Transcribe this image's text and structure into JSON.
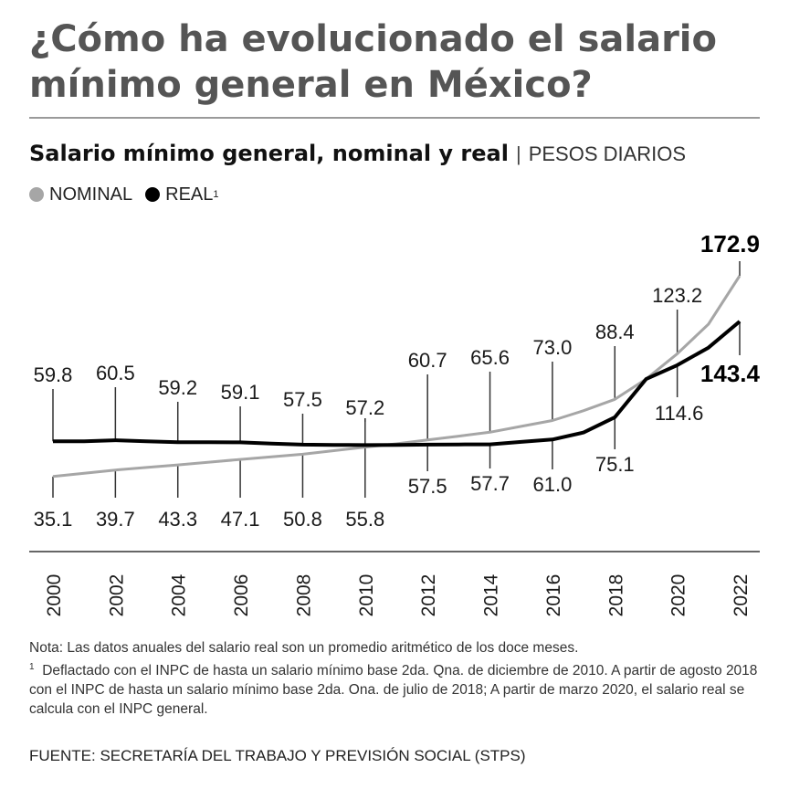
{
  "header": {
    "title": "¿Cómo ha evolucionado el salario mínimo general en México?",
    "subtitle_strong": "Salario mínimo general, nominal y real",
    "subtitle_sep": "|",
    "subtitle_unit": "PESOS DIARIOS"
  },
  "legend": {
    "nominal_label": "NOMINAL",
    "real_label": "REAL",
    "real_footnote_mark": "1"
  },
  "colors": {
    "nominal": "#a6a6a6",
    "real": "#000000",
    "axis": "#333333",
    "title": "#555555"
  },
  "chart_data": {
    "type": "line",
    "title": "Salario mínimo general, nominal y real",
    "ylabel": "Pesos diarios",
    "xlabel": "",
    "x": [
      2000,
      2001,
      2002,
      2003,
      2004,
      2005,
      2006,
      2007,
      2008,
      2009,
      2010,
      2011,
      2012,
      2013,
      2014,
      2015,
      2016,
      2017,
      2018,
      2019,
      2020,
      2021,
      2022
    ],
    "tick_labels": [
      "2000",
      "2002",
      "2004",
      "2006",
      "2008",
      "2010",
      "2012",
      "2014",
      "2016",
      "2018",
      "2020",
      "2022"
    ],
    "series": [
      {
        "name": "NOMINAL",
        "values": [
          35.1,
          37.4,
          39.7,
          41.5,
          43.3,
          45.2,
          47.1,
          49.0,
          50.8,
          53.3,
          55.8,
          58.1,
          60.7,
          63.1,
          65.6,
          69.3,
          73.0,
          80.0,
          88.4,
          102.7,
          123.2,
          141.7,
          172.9
        ]
      },
      {
        "name": "REAL",
        "values": [
          59.8,
          59.8,
          60.5,
          59.8,
          59.2,
          59.2,
          59.1,
          58.3,
          57.5,
          57.3,
          57.2,
          57.3,
          57.5,
          57.6,
          57.7,
          59.4,
          61.0,
          65.4,
          75.1,
          102.7,
          114.6,
          127.0,
          143.4
        ]
      }
    ],
    "annotations": [
      {
        "year": 2000,
        "nominal": "35.1",
        "real": "59.8"
      },
      {
        "year": 2002,
        "nominal": "39.7",
        "real": "60.5"
      },
      {
        "year": 2004,
        "nominal": "43.3",
        "real": "59.2"
      },
      {
        "year": 2006,
        "nominal": "47.1",
        "real": "59.1"
      },
      {
        "year": 2008,
        "nominal": "50.8",
        "real": "57.5"
      },
      {
        "year": 2010,
        "nominal": "55.8",
        "real": "57.2"
      },
      {
        "year": 2012,
        "nominal": "60.7",
        "real": "57.5"
      },
      {
        "year": 2014,
        "nominal": "65.6",
        "real": "57.7"
      },
      {
        "year": 2016,
        "nominal": "73.0",
        "real": "61.0"
      },
      {
        "year": 2018,
        "nominal": "88.4",
        "real": "75.1"
      },
      {
        "year": 2020,
        "nominal": "123.2",
        "real": "114.6"
      },
      {
        "year": 2022,
        "nominal": "172.9",
        "real": "143.4"
      }
    ],
    "ylim": [
      20,
      180
    ],
    "grid": false
  },
  "notes": {
    "line1": "Nota: Las datos anuales del salario real son un promedio aritmético de los doce meses.",
    "footnote_mark": "1",
    "footnote_text": "Deflactado con el INPC de hasta un salario mínimo base 2da. Qna. de diciembre de 2010. A partir de agosto 2018 con el INPC de hasta un salario mínimo base 2da. Ona. de julio de 2018; A partir de marzo 2020, el salario real se calcula con el INPC general."
  },
  "source": "FUENTE: SECRETARÍA DEL TRABAJO Y PREVISIÓN SOCIAL (STPS)"
}
